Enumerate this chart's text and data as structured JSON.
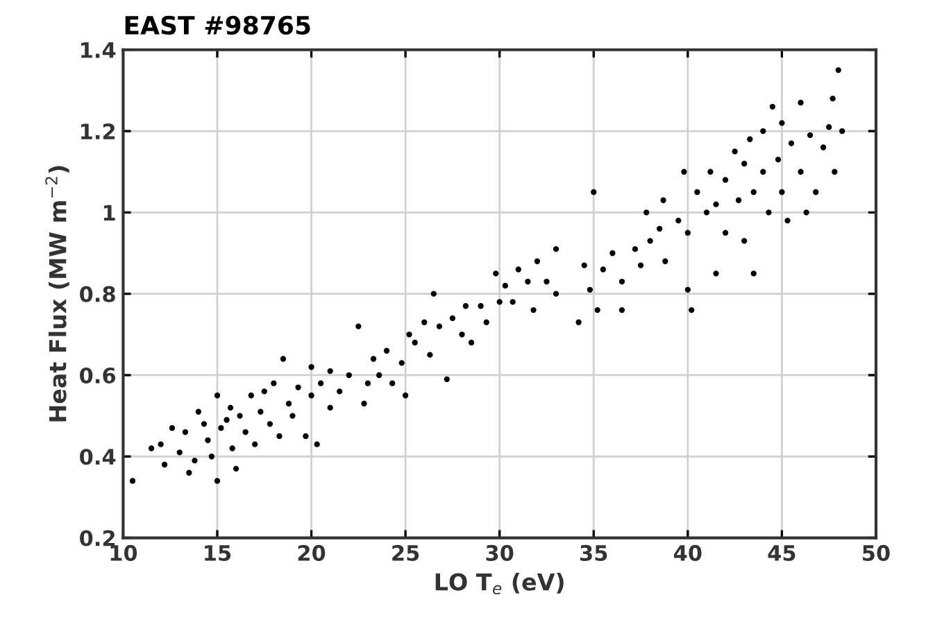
{
  "chart_data": {
    "type": "scatter",
    "title": "EAST #98765",
    "xlabel": "LO T$_{e}$ (eV)",
    "ylabel": "Heat Flux (MW m$^{−2}$)",
    "xlim": [
      10,
      50
    ],
    "xticks": [
      10,
      15,
      20,
      25,
      30,
      35,
      40,
      45,
      50
    ],
    "ylim": [
      0.2,
      1.4
    ],
    "yticks": [
      0.2,
      0.4,
      0.6,
      0.8,
      1,
      1.2,
      1.4
    ],
    "grid": true,
    "marker": "circle",
    "series": [
      {
        "color": "#000000",
        "x": [
          10.5,
          11.5,
          12,
          12.2,
          12.6,
          13,
          13.3,
          13.5,
          13.8,
          14,
          14.3,
          14.5,
          14.7,
          15,
          15,
          15.2,
          15.5,
          15.7,
          15.8,
          16,
          16.2,
          16.5,
          16.8,
          17,
          17.3,
          17.5,
          17.8,
          18,
          18.3,
          18.5,
          18.8,
          19,
          19.3,
          19.7,
          20,
          20,
          20.3,
          20.5,
          21,
          21,
          21.5,
          22,
          22.5,
          22.8,
          23,
          23.3,
          23.6,
          24,
          24.3,
          24.8,
          25,
          25.2,
          25.5,
          26,
          26.3,
          26.5,
          26.8,
          27.2,
          27.5,
          28,
          28.2,
          28.5,
          29,
          29.3,
          29.8,
          30,
          30.3,
          30.7,
          31,
          31.5,
          31.8,
          32,
          32.5,
          33,
          33,
          34.2,
          34.5,
          34.8,
          35,
          35.5,
          35.2,
          36,
          36.5,
          36.5,
          37.2,
          37.5,
          37.8,
          38,
          38.5,
          38.7,
          38.8,
          39.5,
          39.8,
          40,
          40,
          40.2,
          40.5,
          41,
          41.2,
          41.5,
          41.5,
          42,
          42,
          42.5,
          42.7,
          43,
          43,
          43.3,
          43.5,
          43.5,
          44,
          44,
          44.3,
          44.5,
          44.8,
          45,
          45,
          45.3,
          45.5,
          46,
          46,
          46.3,
          46.5,
          46.8,
          47.2,
          47.5,
          47.7,
          48,
          48.2,
          47.8
        ],
        "values": [
          0.34,
          0.42,
          0.43,
          0.38,
          0.47,
          0.41,
          0.46,
          0.36,
          0.39,
          0.51,
          0.48,
          0.44,
          0.4,
          0.34,
          0.55,
          0.47,
          0.49,
          0.52,
          0.42,
          0.37,
          0.5,
          0.46,
          0.55,
          0.43,
          0.51,
          0.56,
          0.48,
          0.58,
          0.45,
          0.64,
          0.53,
          0.5,
          0.57,
          0.45,
          0.62,
          0.55,
          0.43,
          0.58,
          0.52,
          0.61,
          0.56,
          0.6,
          0.72,
          0.53,
          0.58,
          0.64,
          0.6,
          0.66,
          0.58,
          0.63,
          0.55,
          0.7,
          0.68,
          0.73,
          0.65,
          0.8,
          0.72,
          0.59,
          0.74,
          0.7,
          0.77,
          0.68,
          0.77,
          0.73,
          0.85,
          0.78,
          0.82,
          0.78,
          0.86,
          0.83,
          0.76,
          0.88,
          0.83,
          0.91,
          0.8,
          0.73,
          0.87,
          0.81,
          1.05,
          0.86,
          0.76,
          0.9,
          0.83,
          0.76,
          0.91,
          0.87,
          1.0,
          0.93,
          0.96,
          1.03,
          0.88,
          0.98,
          1.1,
          0.95,
          0.81,
          0.76,
          1.05,
          1.0,
          1.1,
          1.02,
          0.85,
          1.08,
          0.95,
          1.15,
          1.03,
          1.12,
          0.93,
          1.18,
          0.85,
          1.05,
          1.2,
          1.1,
          1.0,
          1.26,
          1.13,
          1.05,
          1.22,
          0.98,
          1.17,
          1.27,
          1.1,
          1.0,
          1.19,
          1.05,
          1.16,
          1.21,
          1.28,
          1.35,
          1.2,
          1.1
        ]
      }
    ]
  }
}
